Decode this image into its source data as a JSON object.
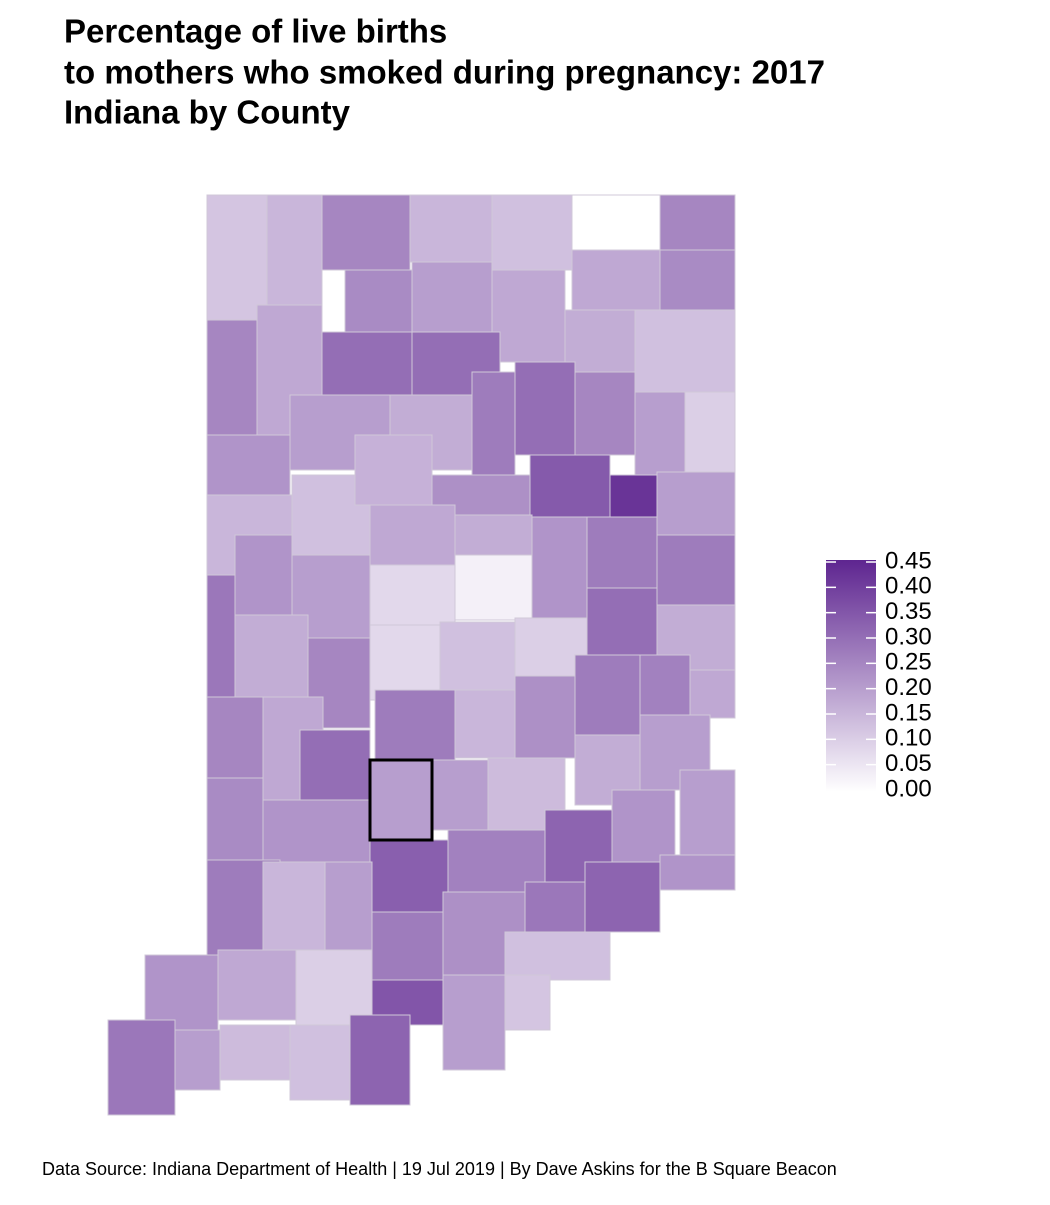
{
  "chart_data": {
    "type": "choropleth",
    "title": [
      "Percentage of live births",
      "to mothers who smoked during pregnancy: 2017",
      "Indiana by County"
    ],
    "caption": "Data Source: Indiana Department of Health | 19 Jul 2019 | By Dave Askins for the B Square Beacon",
    "values": [
      0.12,
      0.15,
      0.25,
      0.15,
      0.13,
      0.0,
      0.25,
      0.24,
      0.2,
      0.18,
      0.18,
      0.24,
      0.25,
      0.18,
      0.3,
      0.3,
      0.17,
      0.13,
      0.22,
      0.2,
      0.17,
      0.27,
      0.3,
      0.25,
      0.2,
      0.1,
      0.15,
      0.13,
      0.16,
      0.23,
      0.34,
      0.42,
      0.2,
      0.28,
      0.2,
      0.18,
      0.17,
      0.22,
      0.27,
      0.27,
      0.22,
      0.08,
      0.03,
      0.3,
      0.17,
      0.17,
      0.25,
      0.08,
      0.13,
      0.1,
      0.27,
      0.26,
      0.18,
      0.25,
      0.18,
      0.27,
      0.15,
      0.23,
      0.3,
      0.17,
      0.2,
      0.2,
      0.2,
      0.14,
      0.2,
      0.24,
      0.22,
      0.33,
      0.26,
      0.32,
      0.22,
      0.22,
      0.27,
      0.15,
      0.2,
      0.27,
      0.23,
      0.28,
      0.32,
      0.18,
      0.1,
      0.22,
      0.35,
      0.13,
      0.12,
      0.2,
      0.28,
      0.2,
      0.14,
      0.13,
      0.32
    ],
    "colorlim": [
      0,
      0.45
    ],
    "colors": [
      "#ffffff",
      "#5e2590"
    ],
    "ticks": [
      {
        "value": 0,
        "label": "0.00"
      },
      0.05,
      {
        "value": 0.1,
        "label": "0.10"
      },
      0.15,
      {
        "value": 0.2,
        "label": "0.20"
      },
      0.25,
      {
        "value": 0.3,
        "label": "0.30"
      },
      0.35,
      {
        "value": 0.4,
        "label": "0.40"
      },
      0.45
    ]
  }
}
